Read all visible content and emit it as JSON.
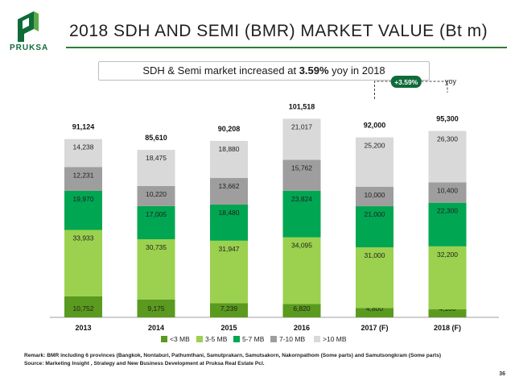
{
  "brand": {
    "name": "PRUKSA",
    "color": "#0f6b3a"
  },
  "slide": {
    "title": "2018 SDH AND SEMI (BMR) MARKET VALUE (Bt m)",
    "subtitle_prefix": "SDH & Semi market increased at ",
    "subtitle_highlight": "3.59%",
    "subtitle_suffix": " yoy in 2018",
    "remark": "Remark: BMR including 6 provinces (Bangkok, Nontaburi, Pathumthani, Samutprakarn, Samutsakorn, Nakornpathom (Some parts) and Samutsongkram (Some parts)",
    "source": "Source: Marketing Insight , Strategy and New Business Development at Pruksa Real Estate Pcl.",
    "page_number": "36"
  },
  "chart_data": {
    "type": "bar",
    "stacked": true,
    "categories": [
      "2013",
      "2014",
      "2015",
      "2016",
      "2017 (F)",
      "2018 (F)"
    ],
    "series": [
      {
        "name": "<3 MB",
        "color": "#5a9a1e",
        "values": [
          10752,
          9175,
          7239,
          6820,
          4800,
          4100
        ],
        "labels": [
          "10,752",
          "9,175",
          "7,239",
          "6,820",
          "4,800",
          "4,100"
        ]
      },
      {
        "name": "3-5 MB",
        "color": "#9bd14e",
        "values": [
          33933,
          30735,
          31947,
          34095,
          31000,
          32200
        ],
        "labels": [
          "33,933",
          "30,735",
          "31,947",
          "34,095",
          "31,000",
          "32,200"
        ]
      },
      {
        "name": "5-7 MB",
        "color": "#00a651",
        "values": [
          19970,
          17005,
          18480,
          23824,
          21000,
          22300
        ],
        "labels": [
          "19,970",
          "17,005",
          "18,480",
          "23,824",
          "21,000",
          "22,300"
        ]
      },
      {
        "name": "7-10 MB",
        "color": "#9e9e9e",
        "values": [
          12231,
          10220,
          13662,
          15762,
          10000,
          10400
        ],
        "labels": [
          "12,231",
          "10,220",
          "13,662",
          "15,762",
          "10,000",
          "10,400"
        ]
      },
      {
        "name": ">10 MB",
        "color": "#d9d9d9",
        "values": [
          14238,
          18475,
          18880,
          21017,
          25200,
          26300
        ],
        "labels": [
          "14,238",
          "18,475",
          "18,880",
          "21,017",
          "25,200",
          "26,300"
        ]
      }
    ],
    "totals": [
      91124,
      85610,
      90208,
      101518,
      92000,
      95300
    ],
    "total_labels": [
      "91,124",
      "85,610",
      "90,208",
      "101,518",
      "92,000",
      "95,300"
    ],
    "ylim": [
      0,
      105000
    ],
    "legend_position": "bottom",
    "annotation": {
      "label": "+3.59%",
      "sublabel": "yoy",
      "color": "#0f6b3a"
    }
  }
}
